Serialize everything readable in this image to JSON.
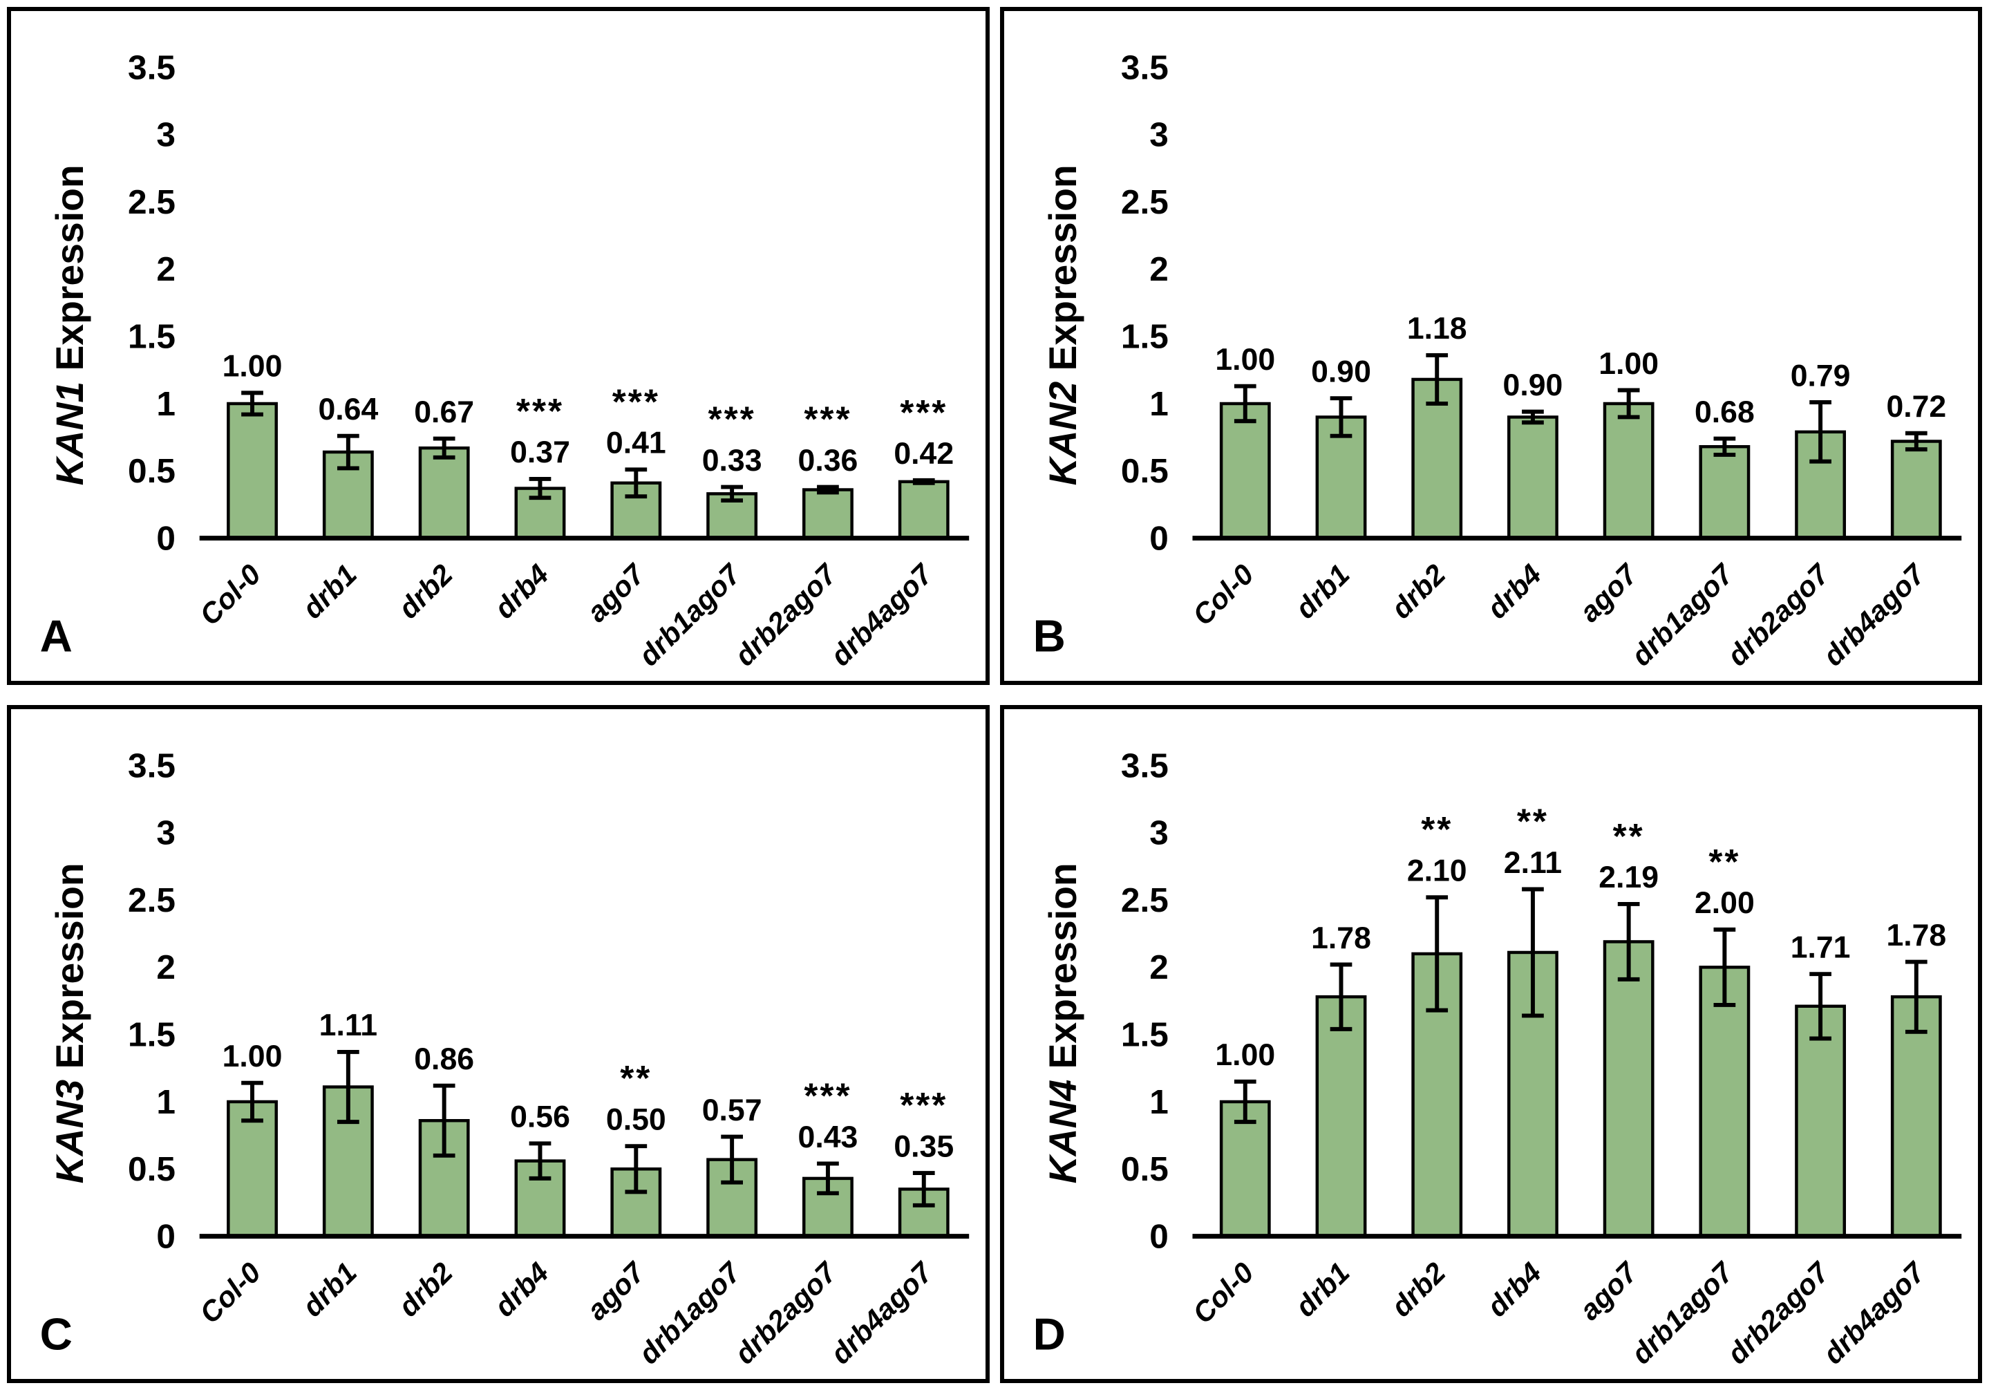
{
  "style": {
    "background": "#FFFFFF",
    "panel_border_color": "#000000",
    "bar_fill": "#93BA84",
    "bar_stroke": "#000000",
    "error_bar_color": "#000000",
    "axis_color": "#000000",
    "text_color": "#000000",
    "significance_color": "#1F3050"
  },
  "chart_data": [
    {
      "type": "bar",
      "panel_label": "A",
      "ylabel": "KAN1 Expression",
      "ylabel_italic_part": "KAN1",
      "ylabel_regular_part": " Expression",
      "categories": [
        "Col-0",
        "drb1",
        "drb2",
        "drb4",
        "ago7",
        "drb1ago7",
        "drb2ago7",
        "drb4ago7"
      ],
      "values": [
        1.0,
        0.64,
        0.67,
        0.37,
        0.41,
        0.33,
        0.36,
        0.42
      ],
      "value_labels": [
        "1.00",
        "0.64",
        "0.67",
        "0.37",
        "0.41",
        "0.33",
        "0.36",
        "0.42"
      ],
      "errors": [
        0.08,
        0.12,
        0.07,
        0.07,
        0.1,
        0.05,
        0.02,
        0.01
      ],
      "significance": [
        "",
        "",
        "",
        "***",
        "***",
        "***",
        "***",
        "***"
      ],
      "ylim": [
        0,
        3.5
      ],
      "ytick_values": [
        0,
        0.5,
        1,
        1.5,
        2,
        2.5,
        3,
        3.5
      ],
      "yticks": [
        "0",
        "0.5",
        "1",
        "1.5",
        "2",
        "2.5",
        "3",
        "3.5"
      ],
      "grid": false,
      "legend": "none"
    },
    {
      "type": "bar",
      "panel_label": "B",
      "ylabel": "KAN2 Expression",
      "ylabel_italic_part": "KAN2",
      "ylabel_regular_part": " Expression",
      "categories": [
        "Col-0",
        "drb1",
        "drb2",
        "drb4",
        "ago7",
        "drb1ago7",
        "drb2ago7",
        "drb4ago7"
      ],
      "values": [
        1.0,
        0.9,
        1.18,
        0.9,
        1.0,
        0.68,
        0.79,
        0.72
      ],
      "value_labels": [
        "1.00",
        "0.90",
        "1.18",
        "0.90",
        "1.00",
        "0.68",
        "0.79",
        "0.72"
      ],
      "errors": [
        0.13,
        0.14,
        0.18,
        0.04,
        0.1,
        0.06,
        0.22,
        0.06
      ],
      "significance": [
        "",
        "",
        "",
        "",
        "",
        "",
        "",
        ""
      ],
      "ylim": [
        0,
        3.5
      ],
      "ytick_values": [
        0,
        0.5,
        1,
        1.5,
        2,
        2.5,
        3,
        3.5
      ],
      "yticks": [
        "0",
        "0.5",
        "1",
        "1.5",
        "2",
        "2.5",
        "3",
        "3.5"
      ],
      "grid": false,
      "legend": "none"
    },
    {
      "type": "bar",
      "panel_label": "C",
      "ylabel": "KAN3 Expression",
      "ylabel_italic_part": "KAN3",
      "ylabel_regular_part": " Expression",
      "categories": [
        "Col-0",
        "drb1",
        "drb2",
        "drb4",
        "ago7",
        "drb1ago7",
        "drb2ago7",
        "drb4ago7"
      ],
      "values": [
        1.0,
        1.11,
        0.86,
        0.56,
        0.5,
        0.57,
        0.43,
        0.35
      ],
      "value_labels": [
        "1.00",
        "1.11",
        "0.86",
        "0.56",
        "0.50",
        "0.57",
        "0.43",
        "0.35"
      ],
      "errors": [
        0.14,
        0.26,
        0.26,
        0.13,
        0.17,
        0.17,
        0.11,
        0.12
      ],
      "significance": [
        "",
        "",
        "",
        "",
        "**",
        "",
        "***",
        "***"
      ],
      "ylim": [
        0,
        3.5
      ],
      "ytick_values": [
        0,
        0.5,
        1,
        1.5,
        2,
        2.5,
        3,
        3.5
      ],
      "yticks": [
        "0",
        "0.5",
        "1",
        "1.5",
        "2",
        "2.5",
        "3",
        "3.5"
      ],
      "grid": false,
      "legend": "none"
    },
    {
      "type": "bar",
      "panel_label": "D",
      "ylabel": "KAN4 Expression",
      "ylabel_italic_part": "KAN4",
      "ylabel_regular_part": " Expression",
      "categories": [
        "Col-0",
        "drb1",
        "drb2",
        "drb4",
        "ago7",
        "drb1ago7",
        "drb2ago7",
        "drb4ago7"
      ],
      "values": [
        1.0,
        1.78,
        2.1,
        2.11,
        2.19,
        2.0,
        1.71,
        1.78
      ],
      "value_labels": [
        "1.00",
        "1.78",
        "2.10",
        "2.11",
        "2.19",
        "2.00",
        "1.71",
        "1.78"
      ],
      "errors": [
        0.15,
        0.24,
        0.42,
        0.47,
        0.28,
        0.28,
        0.24,
        0.26
      ],
      "significance": [
        "",
        "",
        "**",
        "**",
        "**",
        "**",
        "",
        ""
      ],
      "ylim": [
        0,
        3.5
      ],
      "ytick_values": [
        0,
        0.5,
        1,
        1.5,
        2,
        2.5,
        3,
        3.5
      ],
      "yticks": [
        "0",
        "0.5",
        "1",
        "1.5",
        "2",
        "2.5",
        "3",
        "3.5"
      ],
      "grid": false,
      "legend": "none"
    }
  ]
}
